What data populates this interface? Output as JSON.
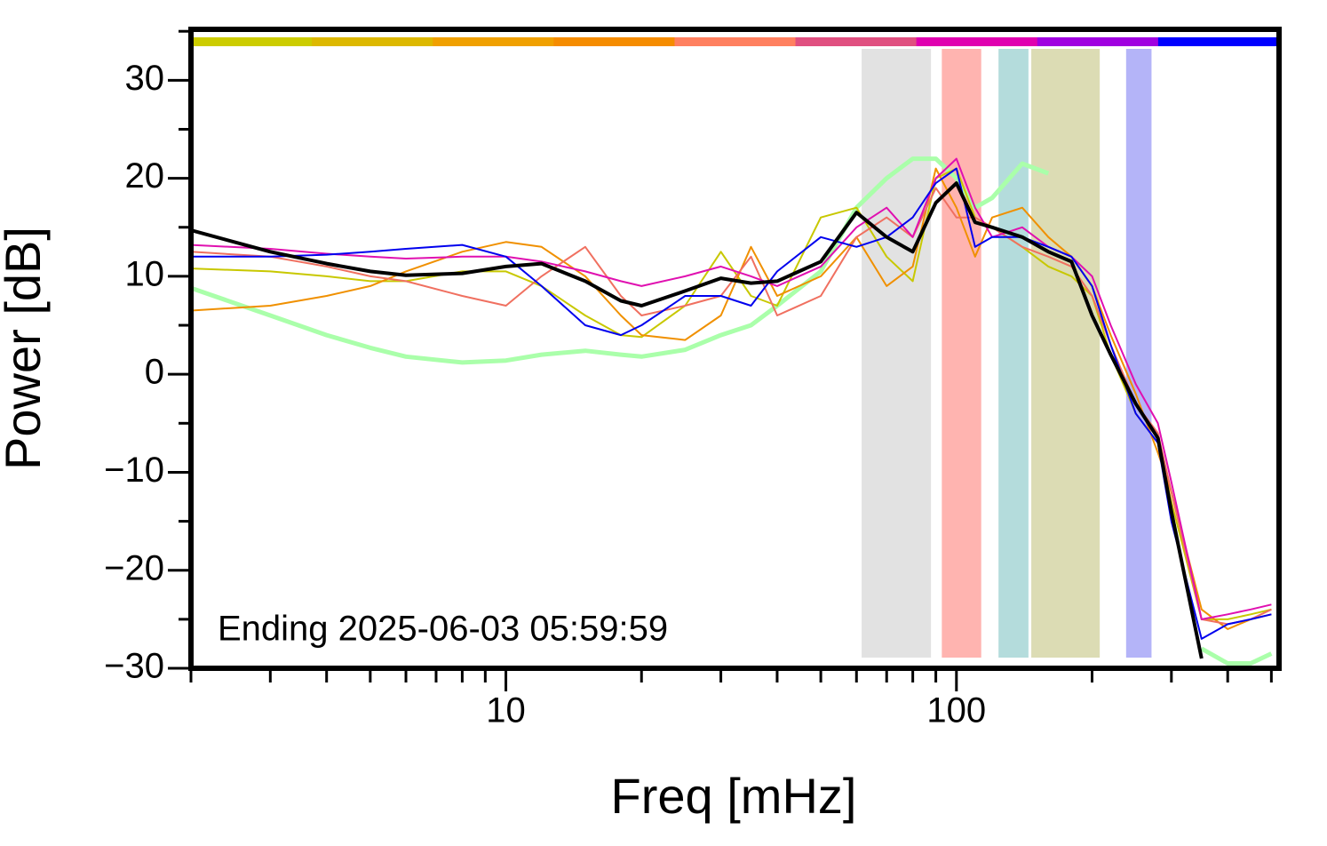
{
  "chart_data": {
    "type": "line",
    "xlabel": "Freq [mHz]",
    "ylabel": "Power [dB]",
    "annotation": "Ending 2025-06-03 05:59:59",
    "log_x": true,
    "xlim": [
      2,
      520
    ],
    "ylim": [
      -30,
      35.2
    ],
    "xticks": [
      10,
      100
    ],
    "xminor_ticks": [
      2,
      3,
      4,
      5,
      6,
      7,
      8,
      9,
      20,
      30,
      40,
      50,
      60,
      70,
      80,
      90,
      200,
      300,
      400,
      500
    ],
    "yticks": [
      {
        "value": -30,
        "label": "−30"
      },
      {
        "value": -20,
        "label": "−20"
      },
      {
        "value": -10,
        "label": "−10"
      },
      0,
      10,
      20,
      30
    ],
    "yminor_ticks": [
      -25,
      -15,
      -5,
      5,
      15,
      25,
      35
    ],
    "top_bar_colors": [
      "#cccc00",
      "#ddb800",
      "#f0a000",
      "#f58c00",
      "#ff8060",
      "#e05080",
      "#e000b0",
      "#a000e0",
      "#0000ff"
    ],
    "bands": [
      {
        "from": 61.6,
        "to": 87.8,
        "color": "#e2e2e2"
      },
      {
        "from": 92.8,
        "to": 113.5,
        "color": "#ffb4b0"
      },
      {
        "from": 124,
        "to": 144.5,
        "color": "#b4dcdc"
      },
      {
        "from": 146.6,
        "to": 208,
        "color": "#dcdcb4"
      },
      {
        "from": 238,
        "to": 271,
        "color": "#b4b4f8"
      }
    ],
    "x": [
      2,
      3,
      4,
      5,
      6,
      8,
      10,
      12,
      15,
      18,
      20,
      25,
      30,
      35,
      40,
      50,
      60,
      70,
      80,
      90,
      100,
      110,
      120,
      140,
      160,
      180,
      200,
      220,
      250,
      280,
      300,
      350,
      400,
      450,
      500
    ],
    "series": [
      {
        "color": "#aaffaa",
        "width": 5,
        "values": [
          8.8,
          6,
          4,
          2.7,
          1.8,
          1.2,
          1.4,
          2,
          2.4,
          2,
          1.8,
          2.5,
          4,
          5,
          7,
          10.5,
          17,
          20,
          22,
          22,
          20,
          17,
          18,
          21.5,
          20.5,
          null,
          null,
          null,
          null,
          null,
          null,
          -28,
          -29.5,
          -29.5,
          -28.5
        ]
      },
      {
        "color": "#c8c800",
        "width": 2,
        "values": [
          10.8,
          10.5,
          10,
          9.5,
          9.5,
          10.5,
          10.5,
          9,
          6,
          4,
          3.8,
          7,
          12.5,
          8,
          7,
          16,
          17,
          12,
          9.5,
          20,
          21,
          16,
          15,
          13,
          11,
          10,
          8,
          2,
          -4,
          -7,
          -13,
          -25,
          -25,
          -24.5,
          -24
        ]
      },
      {
        "color": "#f09000",
        "width": 2,
        "values": [
          6.5,
          7,
          8,
          9,
          10.5,
          12.5,
          13.5,
          13,
          10,
          6,
          4,
          3.5,
          6,
          13,
          8,
          10,
          14,
          9,
          11,
          21,
          17,
          12,
          16,
          17,
          14,
          12,
          9,
          4,
          -2,
          -8,
          -12,
          -24,
          -26,
          -25,
          -24.5
        ]
      },
      {
        "color": "#f07060",
        "width": 2,
        "values": [
          12.5,
          12,
          11,
          10,
          9.5,
          8,
          7,
          10,
          13,
          8,
          6,
          7,
          8,
          12,
          6,
          8,
          14,
          16,
          14,
          19,
          16,
          16,
          15,
          13,
          12,
          11,
          8,
          3,
          -3,
          -6,
          -12,
          -25,
          -25.5,
          -25,
          -24
        ]
      },
      {
        "color": "#e010b0",
        "width": 2,
        "values": [
          13.2,
          12.8,
          12.3,
          12,
          11.8,
          12,
          12,
          11.5,
          10.5,
          9.5,
          9,
          10,
          11,
          10,
          9,
          11,
          15,
          17,
          14,
          20,
          22,
          17,
          14,
          15,
          13,
          12,
          10,
          5,
          -1,
          -5,
          -11,
          -25,
          -24.5,
          -24,
          -23.5
        ]
      },
      {
        "color": "#0000ee",
        "width": 2,
        "values": [
          12,
          12,
          12.2,
          12.5,
          12.8,
          13.2,
          12,
          9,
          5,
          4,
          5,
          8,
          8,
          7,
          10.5,
          14,
          13,
          14,
          16,
          19.5,
          21,
          13,
          14,
          14,
          13,
          12,
          9,
          3,
          -4,
          -7,
          -15,
          -27,
          -25.5,
          -25,
          -24.5
        ]
      },
      {
        "color": "#000000",
        "width": 4,
        "values": [
          14.7,
          12.5,
          11.3,
          10.5,
          10.1,
          10.3,
          11,
          11.3,
          9.5,
          7.5,
          7,
          8.5,
          9.8,
          9.3,
          9.5,
          11.5,
          16.5,
          14,
          12.5,
          17.5,
          19.5,
          15.5,
          15,
          14,
          12.5,
          11.5,
          6,
          2,
          -3,
          -6.5,
          -14,
          -29,
          null,
          null,
          null
        ]
      }
    ]
  }
}
